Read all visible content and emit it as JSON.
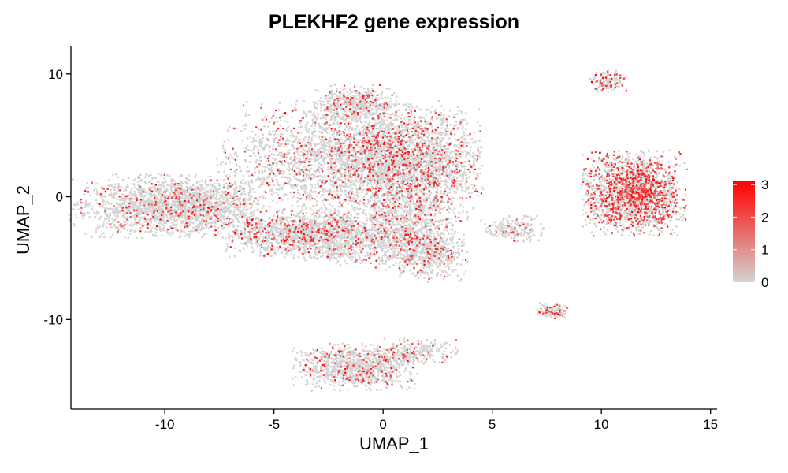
{
  "chart_data": {
    "type": "scatter",
    "title": "PLEKHF2 gene expression",
    "xlabel": "UMAP_1",
    "ylabel": "UMAP_2",
    "xlim": [
      -14.3,
      15.3
    ],
    "ylim": [
      -17.3,
      12.3
    ],
    "xticks": [
      -10,
      -5,
      0,
      5,
      10,
      15
    ],
    "xtick_labels": [
      "-10",
      "-5",
      "0",
      "5",
      "10",
      "15"
    ],
    "yticks": [
      -10,
      0,
      10
    ],
    "ytick_labels": [
      "-10",
      "0",
      "10"
    ],
    "grid": false,
    "legend": {
      "placement": "right",
      "min": 0,
      "max": 3.1,
      "ticks": [
        0,
        1,
        2,
        3
      ],
      "tick_labels": [
        "0",
        "1",
        "2",
        "3"
      ],
      "low_color": "#d3d3d3",
      "high_color": "#ff0000"
    },
    "clusters": [
      {
        "cx": -9.8,
        "cy": -0.8,
        "sx": 2.1,
        "sy": 1.2,
        "n": 1800,
        "expr_frac": 0.1
      },
      {
        "cx": -8.0,
        "cy": -0.6,
        "sx": 0.8,
        "sy": 0.9,
        "n": 250,
        "expr_frac": 0.1
      },
      {
        "cx": -1.5,
        "cy": 3.0,
        "sx": 2.8,
        "sy": 2.2,
        "n": 2600,
        "expr_frac": 0.14
      },
      {
        "cx": 1.2,
        "cy": 2.5,
        "sx": 1.6,
        "sy": 2.3,
        "n": 1800,
        "expr_frac": 0.22
      },
      {
        "cx": -1.3,
        "cy": 7.6,
        "sx": 0.9,
        "sy": 0.7,
        "n": 450,
        "expr_frac": 0.18
      },
      {
        "cx": -4.2,
        "cy": -3.0,
        "sx": 1.4,
        "sy": 0.9,
        "n": 1000,
        "expr_frac": 0.16
      },
      {
        "cx": -1.5,
        "cy": -3.4,
        "sx": 1.3,
        "sy": 1.0,
        "n": 800,
        "expr_frac": 0.12
      },
      {
        "cx": 1.3,
        "cy": -3.2,
        "sx": 0.9,
        "sy": 1.5,
        "n": 700,
        "expr_frac": 0.12
      },
      {
        "cx": 2.4,
        "cy": -4.8,
        "sx": 0.7,
        "sy": 1.0,
        "n": 350,
        "expr_frac": 0.1
      },
      {
        "cx": 11.5,
        "cy": 0.3,
        "sx": 1.1,
        "sy": 1.6,
        "n": 2000,
        "expr_frac": 0.36
      },
      {
        "cx": 10.3,
        "cy": 9.4,
        "sx": 0.4,
        "sy": 0.4,
        "n": 160,
        "expr_frac": 0.14
      },
      {
        "cx": 7.8,
        "cy": -9.3,
        "sx": 0.35,
        "sy": 0.3,
        "n": 130,
        "expr_frac": 0.2
      },
      {
        "cx": 6.0,
        "cy": -2.6,
        "sx": 0.7,
        "sy": 0.5,
        "n": 200,
        "expr_frac": 0.08
      },
      {
        "cx": -1.3,
        "cy": -13.9,
        "sx": 1.3,
        "sy": 0.9,
        "n": 1000,
        "expr_frac": 0.13
      },
      {
        "cx": 1.6,
        "cy": -12.6,
        "sx": 0.9,
        "sy": 0.5,
        "n": 240,
        "expr_frac": 0.13
      }
    ]
  }
}
